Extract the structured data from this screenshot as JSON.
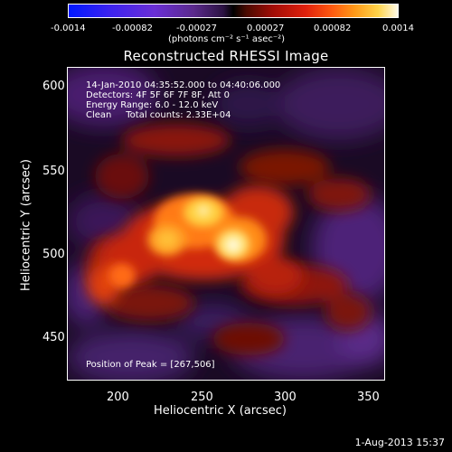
{
  "colorbar": {
    "ticks": [
      "-0.0014",
      "-0.00082",
      "-0.00027",
      "0.00027",
      "0.00082",
      "0.0014"
    ],
    "units": "(photons cm⁻² s⁻¹ asec⁻²)"
  },
  "title": "Reconstructed RHESSI Image",
  "info": {
    "time": "14-Jan-2010 04:35:52.000 to 04:40:06.000",
    "detectors": "Detectors: 4F 5F 6F 7F 8F, Att 0",
    "energy": "Energy Range: 6.0 - 12.0 keV",
    "clean": "Clean     Total counts: 2.33E+04",
    "peak": "Position of Peak = [267,506]"
  },
  "chart_data": {
    "type": "heatmap",
    "title": "Reconstructed RHESSI Image",
    "xlabel": "Heliocentric X (arcsec)",
    "ylabel": "Heliocentric Y (arcsec)",
    "xticks": [
      "200",
      "250",
      "300",
      "350"
    ],
    "yticks": [
      "450",
      "500",
      "550",
      "600"
    ],
    "xlim": [
      165,
      360
    ],
    "ylim": [
      410,
      615
    ],
    "peak": [
      267,
      506
    ],
    "colorscale_range": [
      -0.0014,
      0.0014
    ]
  },
  "footer_date": "1-Aug-2013 15:37"
}
